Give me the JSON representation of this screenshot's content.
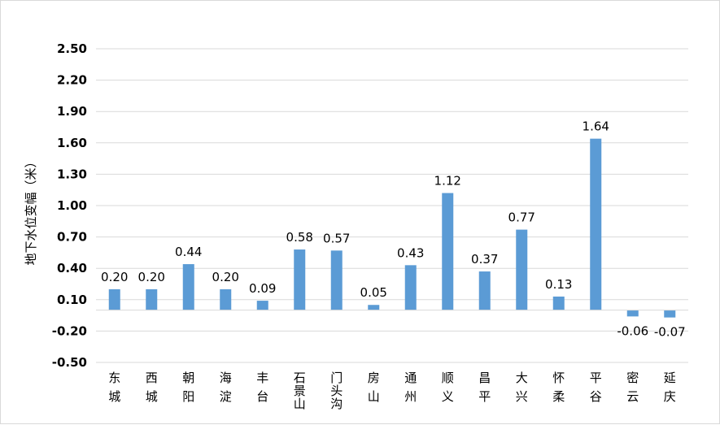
{
  "chart_data": {
    "type": "bar",
    "categories": [
      "东城",
      "西城",
      "朝阳",
      "海淀",
      "丰台",
      "石景山",
      "门头沟",
      "房山",
      "通州",
      "顺义",
      "昌平",
      "大兴",
      "怀柔",
      "平谷",
      "密云",
      "延庆"
    ],
    "values": [
      0.2,
      0.2,
      0.44,
      0.2,
      0.09,
      0.58,
      0.57,
      0.05,
      0.43,
      1.12,
      0.37,
      0.77,
      0.13,
      1.64,
      -0.06,
      -0.07
    ],
    "data_labels": [
      "0.20",
      "0.20",
      "0.44",
      "0.20",
      "0.09",
      "0.58",
      "0.57",
      "0.05",
      "0.43",
      "1.12",
      "0.37",
      "0.77",
      "0.13",
      "1.64",
      "-0.06",
      "-0.07"
    ],
    "title": "",
    "xlabel": "",
    "ylabel": "地下水位变幅（米）",
    "ylim": [
      -0.5,
      2.5
    ],
    "yticks": [
      2.5,
      2.2,
      1.9,
      1.6,
      1.3,
      1.0,
      0.7,
      0.4,
      0.1,
      -0.2,
      -0.5
    ],
    "ytick_labels": [
      "2.50",
      "2.20",
      "1.90",
      "1.60",
      "1.30",
      "1.00",
      "0.70",
      "0.40",
      "0.10",
      "-0.20",
      "-0.50"
    ],
    "grid": true,
    "bar_color": "#5b9bd5",
    "grid_color": "#d9d9d9"
  }
}
